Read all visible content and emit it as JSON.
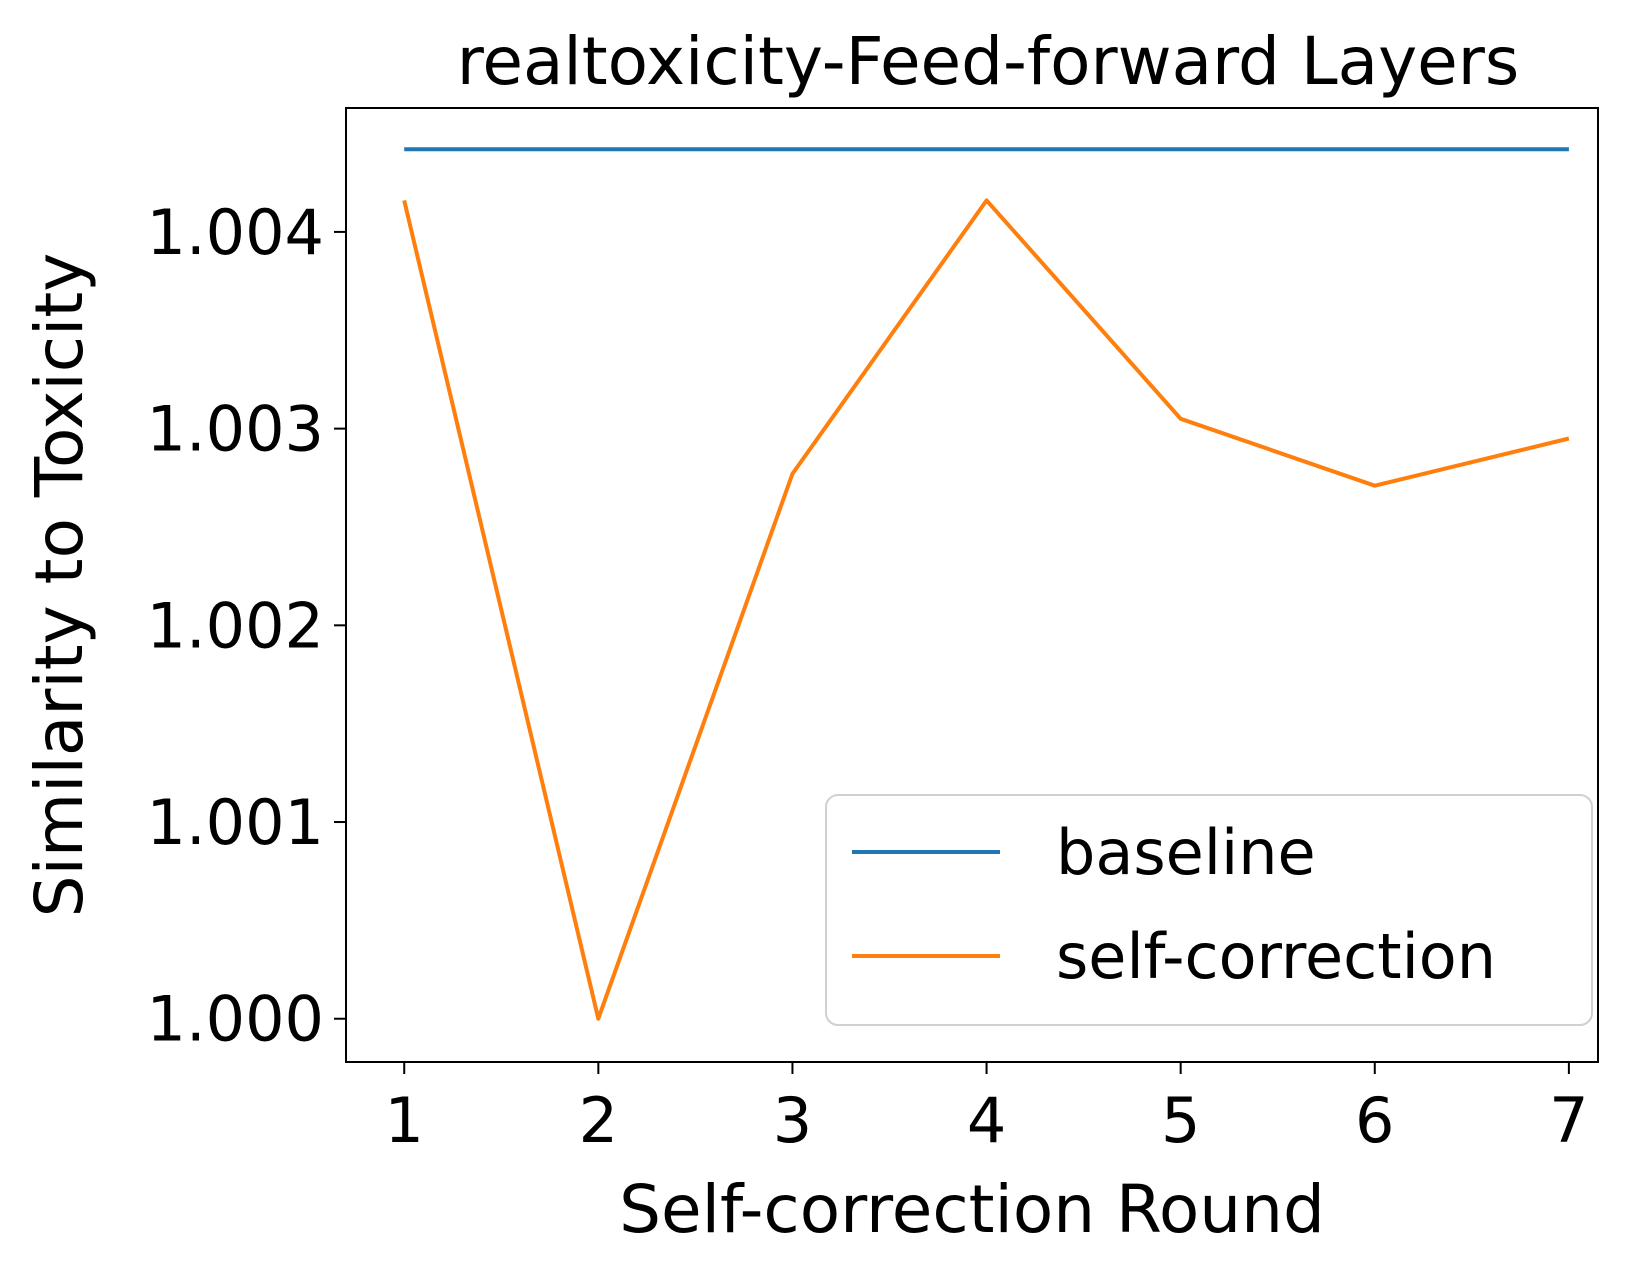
{
  "chart_data": {
    "type": "line",
    "title": "realtoxicity-Feed-forward Layers",
    "xlabel": "Self-correction Round",
    "ylabel": "Similarity to Toxicity",
    "x": [
      1,
      2,
      3,
      4,
      5,
      6,
      7
    ],
    "x_ticks": [
      "1",
      "2",
      "3",
      "4",
      "5",
      "6",
      "7"
    ],
    "y_ticks": [
      "1.000",
      "1.001",
      "1.002",
      "1.003",
      "1.004"
    ],
    "y_tick_values": [
      1.0,
      1.001,
      1.002,
      1.003,
      1.004
    ],
    "xlim": [
      0.7,
      7.15
    ],
    "ylim": [
      0.99978,
      1.00463
    ],
    "grid": false,
    "legend_position": "lower-right",
    "series": [
      {
        "name": "baseline",
        "color": "#1f77b4",
        "values": [
          1.00442,
          1.00442,
          1.00442,
          1.00442,
          1.00442,
          1.00442,
          1.00442
        ]
      },
      {
        "name": "self-correction",
        "color": "#ff7f0e",
        "values": [
          1.00416,
          1.0,
          1.00277,
          1.00416,
          1.00305,
          1.00271,
          1.00295
        ]
      }
    ]
  }
}
